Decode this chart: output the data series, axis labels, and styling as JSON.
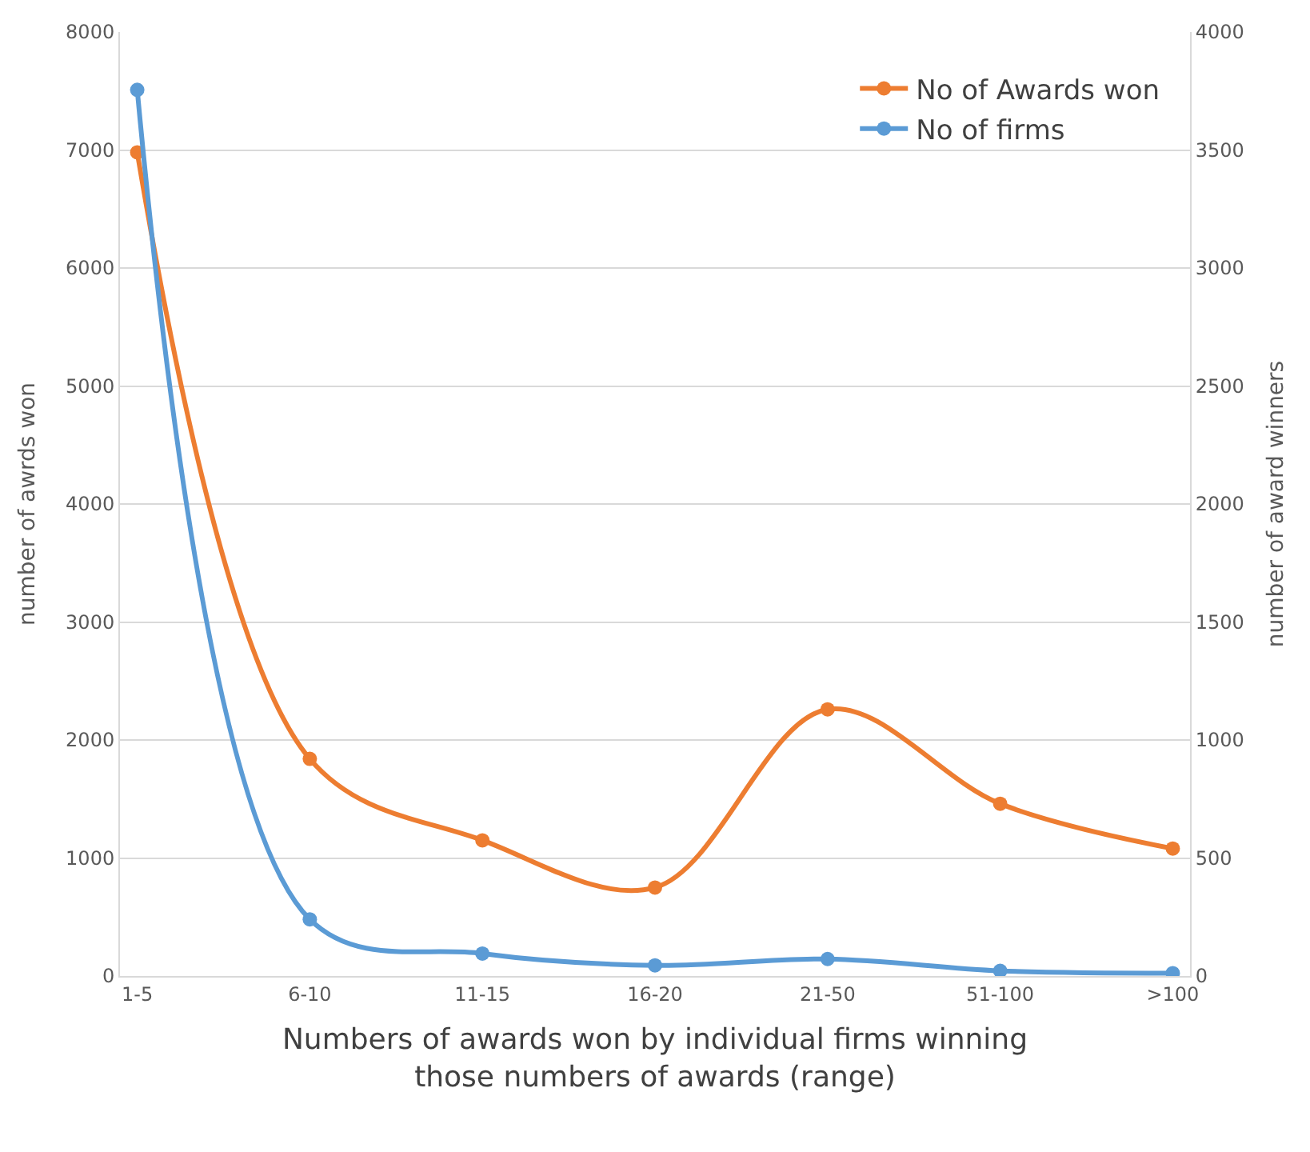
{
  "chart_data": {
    "type": "line",
    "xlabel": "Numbers of awards won by individual firms winning those numbers of awards (range)",
    "ylabel": "number of awrds won",
    "y2label": "number of award winners",
    "categories": [
      "1-5",
      "6-10",
      "11-15",
      "16-20",
      "21-50",
      "51-100",
      ">100"
    ],
    "series": [
      {
        "name": "No of Awards won",
        "color": "#ed7d31",
        "values": [
          6980,
          1840,
          1150,
          750,
          2260,
          1460,
          1080
        ]
      },
      {
        "name": "No of firms",
        "color": "#5b9bd5",
        "axis": "y2",
        "values": [
          3755,
          240,
          95,
          45,
          72,
          22,
          12
        ]
      }
    ],
    "ylim": [
      0,
      8000
    ],
    "yticks": [
      0,
      1000,
      2000,
      3000,
      4000,
      5000,
      6000,
      7000,
      8000
    ],
    "y2lim": [
      0,
      4000
    ],
    "y2ticks": [
      0,
      500,
      1000,
      1500,
      2000,
      2500,
      3000,
      3500,
      4000
    ],
    "grid": "y",
    "legend": "top right",
    "marker": "circle",
    "line_style": "solid"
  }
}
